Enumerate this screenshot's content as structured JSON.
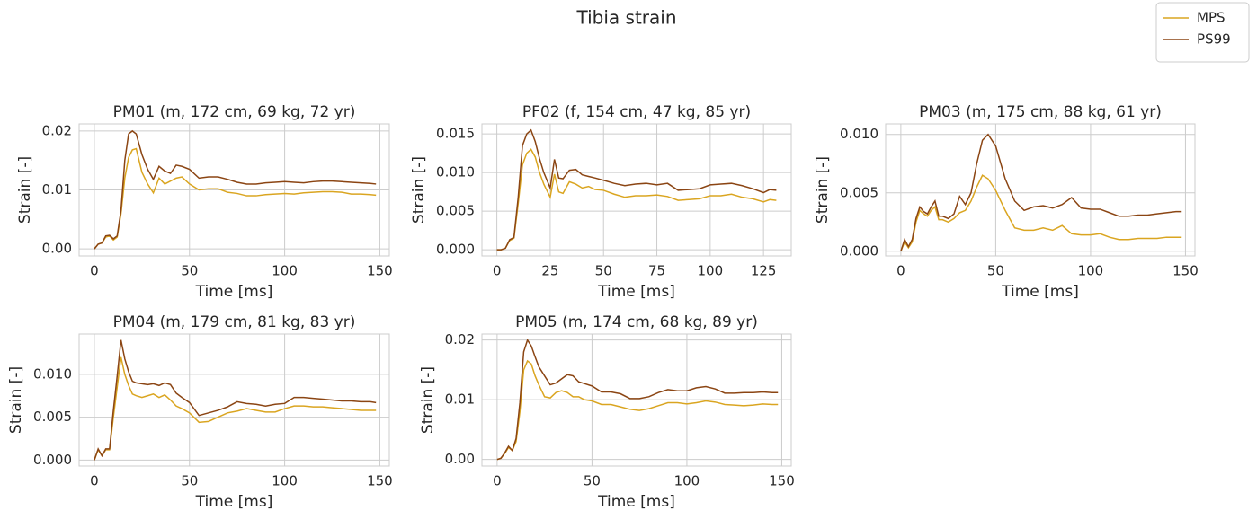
{
  "title": "Tibia strain",
  "legend_loc": "upper right",
  "chart_data": [
    {
      "type": "line",
      "title": "PM01 (m, 172 cm, 69 kg, 72 yr)",
      "xlabel": "Time [ms]",
      "ylabel": "Strain [-]",
      "grid": true,
      "x": [
        0,
        2,
        4,
        6,
        8,
        10,
        12,
        14,
        16,
        18,
        20,
        22,
        25,
        28,
        31,
        34,
        37,
        40,
        43,
        46,
        50,
        55,
        60,
        65,
        70,
        75,
        80,
        85,
        90,
        95,
        100,
        105,
        110,
        115,
        120,
        125,
        130,
        135,
        140,
        145,
        148
      ],
      "series": [
        {
          "name": "MPS",
          "color": "#daa520",
          "values": [
            0,
            0.0008,
            0.001,
            0.002,
            0.0022,
            0.0015,
            0.002,
            0.006,
            0.012,
            0.0155,
            0.0168,
            0.017,
            0.013,
            0.011,
            0.0095,
            0.012,
            0.011,
            0.0115,
            0.012,
            0.0122,
            0.011,
            0.01,
            0.0102,
            0.0102,
            0.0096,
            0.0094,
            0.009,
            0.009,
            0.0092,
            0.0093,
            0.0094,
            0.0093,
            0.0095,
            0.0096,
            0.0097,
            0.0097,
            0.0096,
            0.0093,
            0.0093,
            0.0092,
            0.0091
          ]
        },
        {
          "name": "PS99",
          "color": "#8b4513",
          "values": [
            0,
            0.0008,
            0.001,
            0.0022,
            0.0023,
            0.0017,
            0.0022,
            0.0065,
            0.015,
            0.0195,
            0.02,
            0.0195,
            0.016,
            0.0135,
            0.0118,
            0.014,
            0.0132,
            0.0128,
            0.0142,
            0.014,
            0.0135,
            0.012,
            0.0122,
            0.0122,
            0.0118,
            0.0113,
            0.011,
            0.011,
            0.0112,
            0.0113,
            0.0114,
            0.0113,
            0.0112,
            0.0114,
            0.0115,
            0.0115,
            0.0114,
            0.0113,
            0.0112,
            0.0111,
            0.011
          ]
        }
      ],
      "xlim": [
        -8,
        155
      ],
      "xticks": [
        0,
        50,
        100,
        150
      ],
      "ylim": [
        -0.0012,
        0.0212
      ],
      "yticks": [
        {
          "value": 0,
          "label": "0.00"
        },
        0.01,
        0.02
      ]
    },
    {
      "type": "line",
      "title": "PF02 (f, 154 cm, 47 kg, 85 yr)",
      "xlabel": "Time [ms]",
      "ylabel": "Strain [-]",
      "grid": true,
      "x": [
        0,
        2,
        4,
        6,
        8,
        10,
        12,
        14,
        16,
        18,
        20,
        22,
        25,
        27,
        29,
        31,
        34,
        37,
        40,
        43,
        46,
        50,
        55,
        60,
        65,
        70,
        75,
        80,
        85,
        90,
        95,
        100,
        105,
        110,
        115,
        120,
        125,
        128,
        131
      ],
      "series": [
        {
          "name": "MPS",
          "color": "#daa520",
          "values": [
            0,
            0,
            0.0002,
            0.0012,
            0.0015,
            0.006,
            0.011,
            0.0125,
            0.013,
            0.012,
            0.01,
            0.0085,
            0.0068,
            0.0098,
            0.0075,
            0.0073,
            0.0088,
            0.0085,
            0.008,
            0.0082,
            0.0078,
            0.0077,
            0.0072,
            0.0068,
            0.007,
            0.007,
            0.0071,
            0.0069,
            0.0064,
            0.0065,
            0.0066,
            0.007,
            0.007,
            0.0072,
            0.0068,
            0.0066,
            0.0062,
            0.0065,
            0.0064
          ]
        },
        {
          "name": "PS99",
          "color": "#8b4513",
          "values": [
            0,
            0,
            0.0002,
            0.0013,
            0.0016,
            0.0068,
            0.0135,
            0.015,
            0.0155,
            0.014,
            0.0118,
            0.01,
            0.008,
            0.0117,
            0.0093,
            0.0092,
            0.0103,
            0.0104,
            0.0097,
            0.0095,
            0.0093,
            0.009,
            0.0086,
            0.0083,
            0.0085,
            0.0086,
            0.0084,
            0.0086,
            0.0077,
            0.0078,
            0.0079,
            0.0084,
            0.0085,
            0.0086,
            0.0083,
            0.0079,
            0.0074,
            0.0078,
            0.0077
          ]
        }
      ],
      "xlim": [
        -7,
        138
      ],
      "xticks": [
        0,
        25,
        50,
        75,
        100,
        125
      ],
      "ylim": [
        -0.0008,
        0.0163
      ],
      "yticks": [
        {
          "value": 0,
          "label": "0.000"
        },
        0.005,
        {
          "value": 0.01,
          "label": "0.010"
        },
        0.015
      ]
    },
    {
      "type": "line",
      "title": "PM03 (m, 175 cm, 88 kg, 61 yr)",
      "xlabel": "Time [ms]",
      "ylabel": "Strain [-]",
      "grid": true,
      "x": [
        0,
        2,
        4,
        6,
        8,
        10,
        12,
        14,
        16,
        18,
        20,
        22,
        25,
        28,
        31,
        34,
        37,
        40,
        43,
        46,
        50,
        55,
        60,
        65,
        70,
        75,
        80,
        85,
        90,
        95,
        100,
        105,
        110,
        115,
        120,
        125,
        130,
        135,
        140,
        145,
        148
      ],
      "series": [
        {
          "name": "MPS",
          "color": "#daa520",
          "values": [
            0,
            0.0008,
            0.0003,
            0.0008,
            0.0025,
            0.0035,
            0.0032,
            0.003,
            0.0035,
            0.0038,
            0.0027,
            0.0027,
            0.0025,
            0.0028,
            0.0033,
            0.0035,
            0.0043,
            0.0055,
            0.0065,
            0.0062,
            0.0052,
            0.0035,
            0.002,
            0.0018,
            0.0018,
            0.002,
            0.0018,
            0.0022,
            0.0015,
            0.0014,
            0.0014,
            0.0015,
            0.0012,
            0.001,
            0.001,
            0.0011,
            0.0011,
            0.0011,
            0.0012,
            0.0012,
            0.0012
          ]
        },
        {
          "name": "PS99",
          "color": "#8b4513",
          "values": [
            0,
            0.001,
            0.0004,
            0.001,
            0.0028,
            0.0038,
            0.0034,
            0.0032,
            0.0038,
            0.0043,
            0.003,
            0.003,
            0.0028,
            0.0032,
            0.0047,
            0.004,
            0.005,
            0.0075,
            0.0095,
            0.01,
            0.009,
            0.0062,
            0.0043,
            0.0035,
            0.0038,
            0.0039,
            0.0037,
            0.004,
            0.0046,
            0.0037,
            0.0036,
            0.0036,
            0.0033,
            0.003,
            0.003,
            0.0031,
            0.0031,
            0.0032,
            0.0033,
            0.0034,
            0.0034
          ]
        }
      ],
      "xlim": [
        -8,
        155
      ],
      "xticks": [
        0,
        50,
        100,
        150
      ],
      "ylim": [
        -0.0004,
        0.0109
      ],
      "yticks": [
        {
          "value": 0,
          "label": "0.000"
        },
        0.005,
        {
          "value": 0.01,
          "label": "0.010"
        }
      ]
    },
    {
      "type": "line",
      "title": "PM04 (m, 179 cm, 81 kg, 83 yr)",
      "xlabel": "Time [ms]",
      "ylabel": "Strain [-]",
      "grid": true,
      "x": [
        0,
        2,
        4,
        6,
        8,
        10,
        12,
        14,
        16,
        18,
        20,
        22,
        25,
        28,
        31,
        34,
        37,
        40,
        43,
        46,
        50,
        55,
        60,
        65,
        70,
        75,
        80,
        85,
        90,
        95,
        100,
        105,
        110,
        115,
        120,
        125,
        130,
        135,
        140,
        145,
        148
      ],
      "series": [
        {
          "name": "MPS",
          "color": "#daa520",
          "values": [
            0,
            0.0012,
            0.0005,
            0.0012,
            0.0012,
            0.005,
            0.0085,
            0.012,
            0.01,
            0.0087,
            0.0077,
            0.0075,
            0.0073,
            0.0075,
            0.0077,
            0.0073,
            0.0076,
            0.007,
            0.0063,
            0.006,
            0.0055,
            0.0044,
            0.0045,
            0.005,
            0.0055,
            0.0057,
            0.006,
            0.0058,
            0.0056,
            0.0056,
            0.006,
            0.0063,
            0.0063,
            0.0062,
            0.0062,
            0.0061,
            0.006,
            0.0059,
            0.0058,
            0.0058,
            0.0058
          ]
        },
        {
          "name": "PS99",
          "color": "#8b4513",
          "values": [
            0,
            0.0013,
            0.0005,
            0.0013,
            0.0013,
            0.0058,
            0.0098,
            0.014,
            0.0118,
            0.0103,
            0.0092,
            0.009,
            0.0089,
            0.0088,
            0.0089,
            0.0087,
            0.009,
            0.0088,
            0.0078,
            0.0073,
            0.0067,
            0.0052,
            0.0055,
            0.0058,
            0.0062,
            0.0068,
            0.0066,
            0.0065,
            0.0063,
            0.0065,
            0.0066,
            0.0073,
            0.0073,
            0.0072,
            0.0071,
            0.007,
            0.0069,
            0.0069,
            0.0068,
            0.0068,
            0.0067
          ]
        }
      ],
      "xlim": [
        -8,
        155
      ],
      "xticks": [
        0,
        50,
        100,
        150
      ],
      "ylim": [
        -0.0007,
        0.0147
      ],
      "yticks": [
        {
          "value": 0,
          "label": "0.000"
        },
        0.005,
        {
          "value": 0.01,
          "label": "0.010"
        }
      ]
    },
    {
      "type": "line",
      "title": "PM05 (m, 174 cm, 68 kg, 89 yr)",
      "xlabel": "Time [ms]",
      "ylabel": "Strain [-]",
      "grid": true,
      "x": [
        0,
        2,
        4,
        6,
        8,
        10,
        12,
        14,
        16,
        18,
        20,
        22,
        25,
        28,
        31,
        34,
        37,
        40,
        43,
        46,
        50,
        55,
        60,
        65,
        70,
        75,
        80,
        85,
        90,
        95,
        100,
        105,
        110,
        115,
        120,
        125,
        130,
        135,
        140,
        145,
        148
      ],
      "series": [
        {
          "name": "MPS",
          "color": "#daa520",
          "values": [
            0,
            0.0002,
            0.001,
            0.002,
            0.0015,
            0.003,
            0.008,
            0.015,
            0.0165,
            0.016,
            0.014,
            0.0125,
            0.0105,
            0.0103,
            0.0112,
            0.0115,
            0.0112,
            0.0105,
            0.0105,
            0.01,
            0.0098,
            0.0092,
            0.0092,
            0.0088,
            0.0084,
            0.0082,
            0.0085,
            0.009,
            0.0095,
            0.0095,
            0.0093,
            0.0095,
            0.0098,
            0.0096,
            0.0092,
            0.0091,
            0.009,
            0.0091,
            0.0093,
            0.0092,
            0.0092
          ]
        },
        {
          "name": "PS99",
          "color": "#8b4513",
          "values": [
            0,
            0.0002,
            0.0011,
            0.0022,
            0.0015,
            0.0035,
            0.0095,
            0.018,
            0.02,
            0.019,
            0.0172,
            0.0155,
            0.014,
            0.0125,
            0.0128,
            0.0135,
            0.0142,
            0.014,
            0.013,
            0.0127,
            0.0123,
            0.0113,
            0.0113,
            0.011,
            0.0102,
            0.0102,
            0.0105,
            0.0112,
            0.0117,
            0.0115,
            0.0115,
            0.012,
            0.0122,
            0.0118,
            0.0111,
            0.0111,
            0.0112,
            0.0112,
            0.0113,
            0.0112,
            0.0112
          ]
        }
      ],
      "xlim": [
        -8,
        155
      ],
      "xticks": [
        0,
        50,
        100,
        150
      ],
      "ylim": [
        -0.0011,
        0.021
      ],
      "yticks": [
        {
          "value": 0,
          "label": "0.00"
        },
        0.01,
        0.02
      ]
    }
  ]
}
